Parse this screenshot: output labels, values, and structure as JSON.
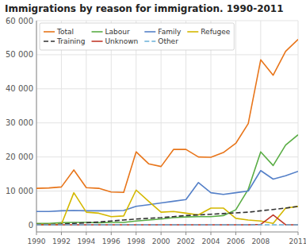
{
  "chart_data": {
    "type": "line",
    "title": "Immigrations by reason for immigration. 1990-2011",
    "x": [
      1990,
      1991,
      1992,
      1993,
      1994,
      1995,
      1996,
      1997,
      1998,
      1999,
      2000,
      2001,
      2002,
      2003,
      2004,
      2005,
      2006,
      2007,
      2008,
      2009,
      2010,
      2011
    ],
    "series": [
      {
        "name": "Total",
        "color": "#e8751a",
        "line_style": "solid",
        "values": [
          10800,
          10900,
          11200,
          16200,
          11000,
          10800,
          9700,
          9600,
          21500,
          18000,
          17200,
          22200,
          22200,
          20000,
          19900,
          21300,
          24000,
          29800,
          48500,
          44000,
          51000,
          54500
        ]
      },
      {
        "name": "Labour",
        "color": "#5aad45",
        "line_style": "solid",
        "values": [
          500,
          500,
          700,
          800,
          800,
          700,
          800,
          800,
          1200,
          1500,
          1800,
          2200,
          2400,
          2500,
          2500,
          2800,
          4500,
          10500,
          21500,
          17500,
          23500,
          26500
        ]
      },
      {
        "name": "Family",
        "color": "#5580c8",
        "line_style": "solid",
        "values": [
          4000,
          4000,
          4200,
          4300,
          4200,
          4200,
          4200,
          4300,
          5500,
          6000,
          6500,
          7000,
          7500,
          12500,
          9500,
          9000,
          9500,
          10000,
          16000,
          13500,
          14500,
          15800
        ]
      },
      {
        "name": "Refugee",
        "color": "#d4b800",
        "line_style": "solid",
        "values": [
          200,
          200,
          200,
          9500,
          3800,
          3500,
          2500,
          2700,
          10300,
          7000,
          3800,
          4000,
          3500,
          3000,
          5000,
          5000,
          2000,
          1500,
          1200,
          500,
          5000,
          5500
        ]
      },
      {
        "name": "Training",
        "color": "#333333",
        "line_style": "dashed",
        "values": [
          200,
          200,
          300,
          500,
          700,
          900,
          1200,
          1500,
          1800,
          2000,
          2200,
          2500,
          2800,
          3000,
          3200,
          3400,
          3600,
          3800,
          4200,
          4600,
          5000,
          5500
        ]
      },
      {
        "name": "Unknown",
        "color": "#c0392b",
        "line_style": "solid",
        "values": [
          100,
          100,
          100,
          100,
          100,
          100,
          100,
          100,
          100,
          100,
          100,
          100,
          100,
          100,
          100,
          100,
          100,
          100,
          200,
          3000,
          100,
          100
        ]
      },
      {
        "name": "Other",
        "color": "#6ab0d8",
        "line_style": "dashed",
        "values": [
          100,
          100,
          100,
          100,
          100,
          100,
          100,
          100,
          100,
          100,
          100,
          100,
          100,
          100,
          100,
          100,
          100,
          100,
          100,
          100,
          100,
          100
        ]
      }
    ],
    "xlim": [
      1990,
      2011
    ],
    "xticks": [
      1990,
      1992,
      1994,
      1996,
      1998,
      2000,
      2002,
      2004,
      2006,
      2008,
      2011
    ],
    "ylim": [
      -2000,
      60000
    ],
    "yticks": [
      0,
      {
        "value": 10000,
        "label": "10 000"
      },
      {
        "value": 20000,
        "label": "20 000"
      },
      {
        "value": 30000,
        "label": "30 000"
      },
      {
        "value": 40000,
        "label": "40 000"
      },
      {
        "value": 50000,
        "label": "50 000"
      },
      {
        "value": 60000,
        "label": "60 000"
      }
    ],
    "grid": true,
    "legend": "upper left"
  }
}
